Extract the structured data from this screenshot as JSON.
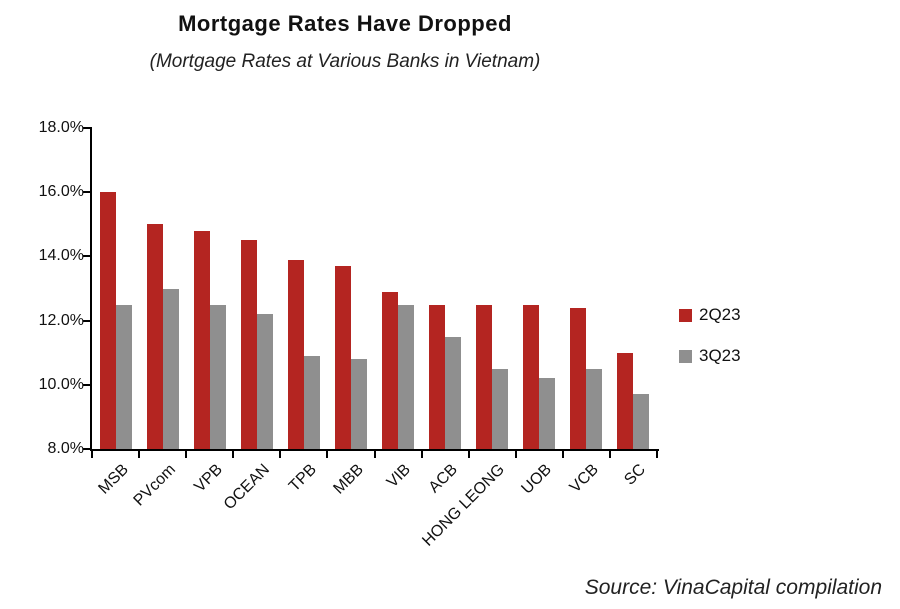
{
  "title": "Mortgage Rates Have Dropped",
  "subtitle": "(Mortgage Rates at Various Banks in Vietnam)",
  "source": "Source: VinaCapital compilation",
  "colors": {
    "series1": "#B42521",
    "series2": "#8F8F8F",
    "axis": "#000000"
  },
  "chart_data": {
    "type": "bar",
    "title": "Mortgage Rates Have Dropped",
    "subtitle": "(Mortgage Rates at Various Banks in Vietnam)",
    "categories": [
      "MSB",
      "PVcom",
      "VPB",
      "OCEAN",
      "TPB",
      "MBB",
      "VIB",
      "ACB",
      "HONG LEONG",
      "UOB",
      "VCB",
      "SC"
    ],
    "series": [
      {
        "name": "2Q23",
        "color": "#B42521",
        "values": [
          16.0,
          15.0,
          14.8,
          14.5,
          13.9,
          13.7,
          12.9,
          12.5,
          12.5,
          12.5,
          12.4,
          11.0
        ]
      },
      {
        "name": "3Q23",
        "color": "#8F8F8F",
        "values": [
          12.5,
          13.0,
          12.5,
          12.2,
          10.9,
          10.8,
          12.5,
          11.5,
          10.5,
          10.2,
          10.5,
          9.7
        ]
      }
    ],
    "ylim": [
      8,
      18
    ],
    "ytick_step": 2,
    "ytick_labels": [
      "8.0%",
      "10.0%",
      "12.0%",
      "14.0%",
      "16.0%",
      "18.0%"
    ],
    "xlabel": "",
    "ylabel": "",
    "grid": false,
    "legend_position": "right"
  }
}
